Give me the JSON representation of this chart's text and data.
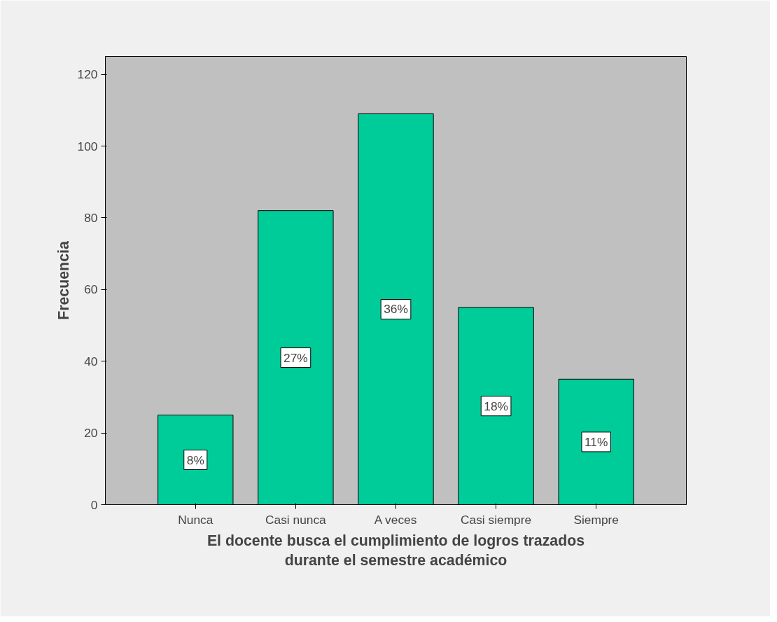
{
  "chart_data": {
    "type": "bar",
    "xlabel": "El docente busca el cumplimiento de logros trazados\ndurante el semestre académico",
    "ylabel": "Frecuencia",
    "categories": [
      "Nunca",
      "Casi nunca",
      "A veces",
      "Casi siempre",
      "Siempre"
    ],
    "values": [
      25,
      82,
      109,
      55,
      35
    ],
    "color": "#00cc99",
    "annotations": [
      {
        "text": "8%",
        "x": "Nunca",
        "y": 12.5
      },
      {
        "text": "27%",
        "x": "Casi nunca",
        "y": 41
      },
      {
        "text": "36%",
        "x": "A veces",
        "y": 54.5
      },
      {
        "text": "18%",
        "x": "Casi siempre",
        "y": 27.5
      },
      {
        "text": "11%",
        "x": "Siempre",
        "y": 17.5
      }
    ],
    "ylim": [
      0,
      125
    ],
    "yticks": [
      0,
      20,
      40,
      60,
      80,
      100,
      120
    ],
    "grid": false
  }
}
